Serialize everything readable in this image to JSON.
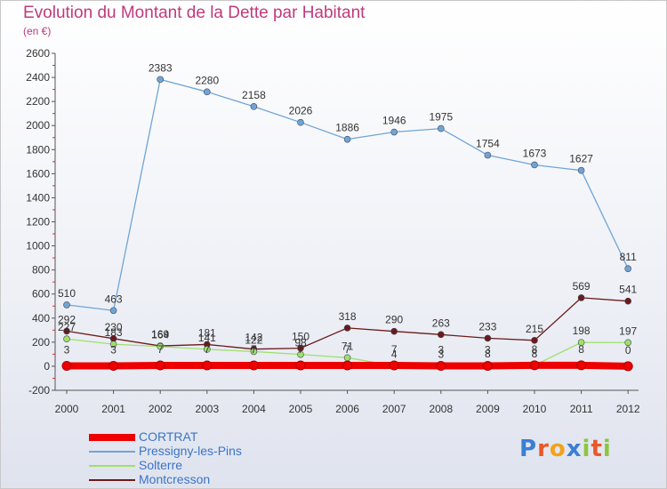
{
  "header": {
    "title": "Evolution du Montant de la Dette par Habitant",
    "subtitle": "(en €)"
  },
  "logo": {
    "text": "Proxiti",
    "letter_colors": [
      "#3a7fd5",
      "#e8582b",
      "#f3a21b",
      "#3a7fd5",
      "#8cc63f",
      "#e8582b",
      "#8cc63f"
    ]
  },
  "chart_data": {
    "type": "line",
    "title": "Evolution du Montant de la Dette par Habitant",
    "subtitle": "(en €)",
    "xlabel": "",
    "ylabel": "",
    "x": [
      "2000",
      "2001",
      "2002",
      "2003",
      "2004",
      "2005",
      "2006",
      "2007",
      "2008",
      "2009",
      "2010",
      "2011",
      "2012"
    ],
    "ylim": [
      -200,
      2600
    ],
    "yticks": [
      -200,
      0,
      200,
      400,
      600,
      800,
      1000,
      1200,
      1400,
      1600,
      1800,
      2000,
      2200,
      2400,
      2600
    ],
    "grid": false,
    "legend_position": "bottom-left",
    "series": [
      {
        "name": "CORTRAT",
        "color": "#ee0000",
        "values": [
          3,
          3,
          7,
          7,
          7,
          7,
          7,
          7,
          3,
          3,
          8,
          8,
          0
        ],
        "labels": [
          "3",
          "3",
          "7",
          "7",
          "7",
          "7",
          "7",
          "7",
          "3",
          "3",
          "8",
          "8",
          "0"
        ]
      },
      {
        "name": "Pressigny-les-Pins",
        "color": "#6fa5d6",
        "values": [
          510,
          463,
          2383,
          2280,
          2158,
          2026,
          1886,
          1946,
          1975,
          1754,
          1673,
          1627,
          811
        ],
        "labels": [
          "510",
          "463",
          "2383",
          "2280",
          "2158",
          "2026",
          "1886",
          "1946",
          "1975",
          "1754",
          "1673",
          "1627",
          "811"
        ]
      },
      {
        "name": "Solterre",
        "color": "#9ee06a",
        "values": [
          227,
          183,
          164,
          141,
          122,
          98,
          71,
          4,
          3,
          8,
          8,
          198,
          197
        ],
        "labels": [
          "227",
          "183",
          "164",
          "141",
          "122",
          "98",
          "71",
          "4",
          "3",
          "8",
          "8",
          "198",
          "197"
        ]
      },
      {
        "name": "Montcresson",
        "color": "#6b1a1a",
        "values": [
          292,
          230,
          169,
          181,
          142,
          150,
          318,
          290,
          263,
          233,
          215,
          569,
          541
        ],
        "labels": [
          "292",
          "230",
          "169",
          "181",
          "142",
          "150",
          "318",
          "290",
          "263",
          "233",
          "215",
          "569",
          "541"
        ]
      }
    ]
  }
}
